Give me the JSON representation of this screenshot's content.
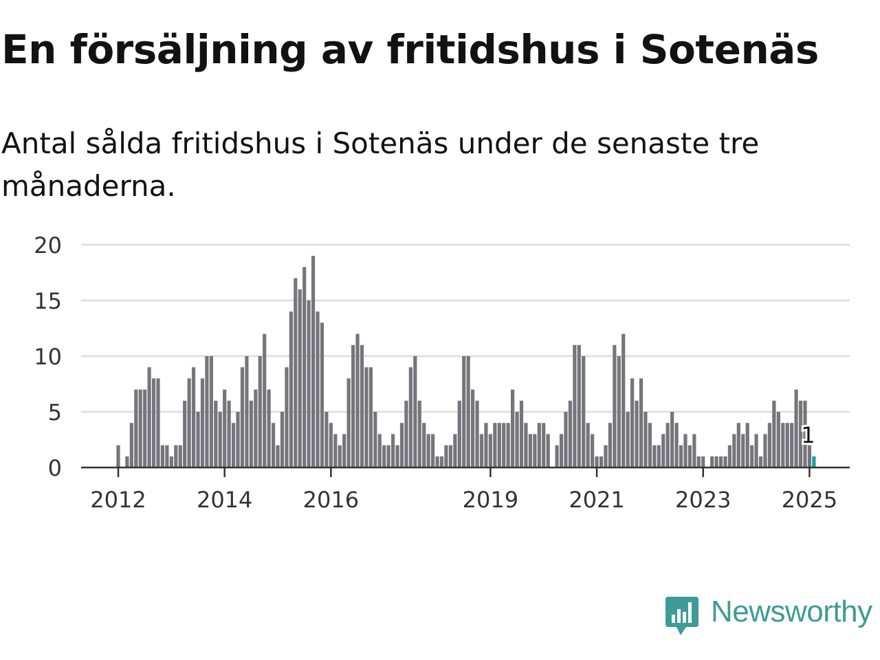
{
  "header": {
    "title": "En försäljning av fritidshus i Sotenäs",
    "subtitle": "Antal sålda fritidshus i Sotenäs under de senaste tre månaderna."
  },
  "brand": {
    "name": "Newsworthy",
    "color": "#3d9c95",
    "icon": "newsworthy-logo-icon"
  },
  "colors": {
    "bar": "#76757c",
    "highlight": "#17a39a",
    "grid": "#dddddd",
    "axis": "#333333"
  },
  "chart_data": {
    "type": "bar",
    "title": "En försäljning av fritidshus i Sotenäs",
    "subtitle": "Antal sålda fritidshus i Sotenäs under de senaste tre månaderna.",
    "xlabel": "",
    "ylabel": "",
    "ylim": [
      0,
      20
    ],
    "yticks": [
      0,
      5,
      10,
      15,
      20
    ],
    "grid": true,
    "x_start": "2012-01",
    "frequency": "monthly",
    "xtick_labels": [
      "2012",
      "2014",
      "2016",
      "2019",
      "2021",
      "2023",
      "2025"
    ],
    "xtick_dates": [
      "2012-01",
      "2014-01",
      "2016-01",
      "2019-01",
      "2021-01",
      "2023-01",
      "2025-01"
    ],
    "values": [
      2,
      0,
      1,
      4,
      7,
      7,
      7,
      9,
      8,
      8,
      2,
      2,
      1,
      2,
      2,
      6,
      8,
      9,
      5,
      8,
      10,
      10,
      6,
      5,
      7,
      6,
      4,
      5,
      9,
      10,
      6,
      7,
      10,
      12,
      7,
      4,
      2,
      5,
      9,
      14,
      17,
      16,
      18,
      15,
      19,
      14,
      13,
      5,
      4,
      3,
      2,
      3,
      8,
      11,
      12,
      11,
      9,
      9,
      5,
      3,
      2,
      2,
      3,
      2,
      4,
      6,
      9,
      10,
      6,
      4,
      3,
      3,
      1,
      1,
      2,
      2,
      3,
      6,
      10,
      10,
      7,
      6,
      3,
      4,
      3,
      4,
      4,
      4,
      4,
      7,
      5,
      6,
      4,
      3,
      3,
      4,
      4,
      3,
      0,
      2,
      3,
      5,
      6,
      11,
      11,
      10,
      4,
      3,
      1,
      1,
      2,
      4,
      11,
      10,
      12,
      5,
      8,
      6,
      8,
      5,
      4,
      2,
      2,
      3,
      4,
      5,
      4,
      2,
      3,
      2,
      3,
      1,
      1,
      0,
      1,
      1,
      1,
      1,
      2,
      3,
      4,
      3,
      4,
      2,
      3,
      1,
      3,
      4,
      6,
      5,
      4,
      4,
      4,
      7,
      6,
      6,
      2,
      1
    ],
    "highlight_last": true,
    "annotation": {
      "label": "1",
      "value": 1,
      "date": "2025-01"
    }
  }
}
